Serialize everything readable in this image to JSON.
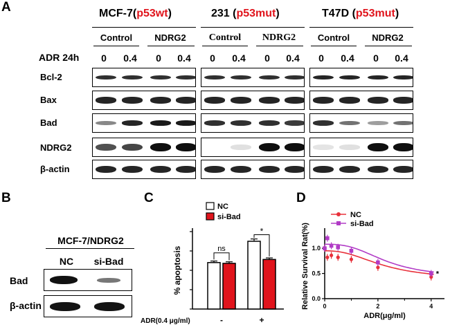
{
  "panel_a": {
    "letter": "A",
    "group_mcf7": {
      "name": "MCF-7(",
      "status": "p53wt",
      "close": ")"
    },
    "group_231": {
      "name": "231 (",
      "status": "p53mut",
      "close": ")"
    },
    "group_t47d": {
      "name": "T47D (",
      "status": "p53mut",
      "close": ")"
    },
    "sub_control": "Control",
    "sub_ndrg2": "NDRG2",
    "treatment_label": "ADR  24h",
    "dose_0": "0",
    "dose_04": "0.4",
    "rows": [
      "Bcl-2",
      "Bax",
      "Bad",
      "NDRG2",
      "β-actin"
    ]
  },
  "panel_b": {
    "letter": "B",
    "title": "MCF-7/NDRG2",
    "lane_nc": "NC",
    "lane_sibad": "si-Bad",
    "rows": [
      "Bad",
      "β-actin"
    ]
  },
  "panel_c": {
    "letter": "C",
    "chart_data": {
      "type": "bar",
      "ylabel": "% apoptosis",
      "xlabel": "ADR(0.4 μg/ml)",
      "categories": [
        "-",
        "+"
      ],
      "series": [
        {
          "name": "NC",
          "color": "#ffffff",
          "values": [
            12,
            17.5
          ],
          "errors": [
            0.4,
            0.6
          ]
        },
        {
          "name": "si-Bad",
          "color": "#e0141c",
          "values": [
            11.8,
            12.8
          ],
          "errors": [
            0.4,
            0.4
          ]
        }
      ],
      "ylim": [
        0,
        20
      ],
      "annotations": [
        "ns",
        "*"
      ]
    }
  },
  "panel_d": {
    "letter": "D",
    "chart_data": {
      "type": "line",
      "ylabel": "Relative Survival Rat(%)",
      "xlabel": "ADR(μg/ml)",
      "xlim": [
        0,
        4.5
      ],
      "ylim": [
        0,
        1.4
      ],
      "xticks": [
        "0",
        "2",
        "4"
      ],
      "yticks": [
        "0.0",
        "0.5",
        "1.0"
      ],
      "series": [
        {
          "name": "NC",
          "color": "#e8303a",
          "x": [
            0,
            0.1,
            0.25,
            0.5,
            1,
            2,
            4
          ],
          "y": [
            1.0,
            0.82,
            0.86,
            0.82,
            0.78,
            0.62,
            0.43
          ]
        },
        {
          "name": "si-Bad",
          "color": "#b13bc6",
          "x": [
            0,
            0.1,
            0.25,
            0.5,
            1,
            2,
            4
          ],
          "y": [
            1.0,
            1.2,
            1.05,
            1.02,
            0.95,
            0.72,
            0.5
          ]
        }
      ],
      "annotations": [
        "*"
      ]
    }
  }
}
